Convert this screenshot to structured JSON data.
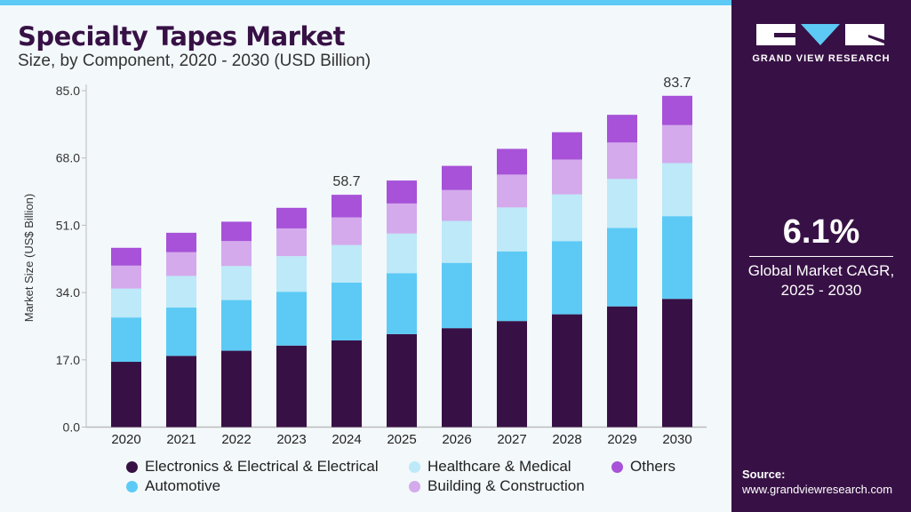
{
  "header": {
    "title": "Specialty Tapes Market",
    "subtitle": "Size, by Component, 2020 - 2030 (USD Billion)"
  },
  "sidebar": {
    "brand": "GRAND VIEW RESEARCH",
    "cagr_value": "6.1%",
    "cagr_label_1": "Global Market CAGR,",
    "cagr_label_2": "2025 - 2030",
    "source_label": "Source:",
    "source_url": "www.grandviewresearch.com"
  },
  "chart_data": {
    "type": "bar",
    "stacked": true,
    "title": "Specialty Tapes Market",
    "subtitle": "Size, by Component, 2020 - 2030 (USD Billion)",
    "xlabel": "",
    "ylabel": "Market Size (US$ Billion)",
    "ylim": [
      0,
      85
    ],
    "yticks": [
      "0.0",
      "17.0",
      "34.0",
      "51.0",
      "68.0",
      "85.0"
    ],
    "grid": false,
    "legend_position": "bottom",
    "categories": [
      "2020",
      "2021",
      "2022",
      "2023",
      "2024",
      "2025",
      "2026",
      "2027",
      "2028",
      "2029",
      "2030"
    ],
    "series": [
      {
        "name": "Electronics & Electrical & Electrical",
        "color": "#371145",
        "values": [
          16.5,
          18.0,
          19.3,
          20.6,
          21.9,
          23.5,
          25.0,
          26.8,
          28.5,
          30.5,
          32.4
        ]
      },
      {
        "name": "Automotive",
        "color": "#5ccaf5",
        "values": [
          11.2,
          12.2,
          12.8,
          13.6,
          14.6,
          15.4,
          16.5,
          17.6,
          18.5,
          19.8,
          20.9
        ]
      },
      {
        "name": "Healthcare & Medical",
        "color": "#bde9f8",
        "values": [
          7.3,
          8.0,
          8.6,
          9.0,
          9.5,
          10.0,
          10.6,
          11.1,
          11.8,
          12.4,
          13.4
        ]
      },
      {
        "name": "Building & Construction",
        "color": "#d4aaec",
        "values": [
          5.8,
          6.0,
          6.3,
          7.0,
          7.0,
          7.6,
          7.8,
          8.3,
          8.8,
          9.2,
          9.6
        ]
      },
      {
        "name": "Others",
        "color": "#a752d8",
        "values": [
          4.5,
          4.9,
          4.9,
          5.2,
          5.7,
          5.8,
          6.1,
          6.5,
          6.9,
          7.0,
          7.4
        ]
      }
    ],
    "annotations": [
      {
        "category": "2024",
        "text": "58.7"
      },
      {
        "category": "2030",
        "text": "83.7"
      }
    ]
  }
}
